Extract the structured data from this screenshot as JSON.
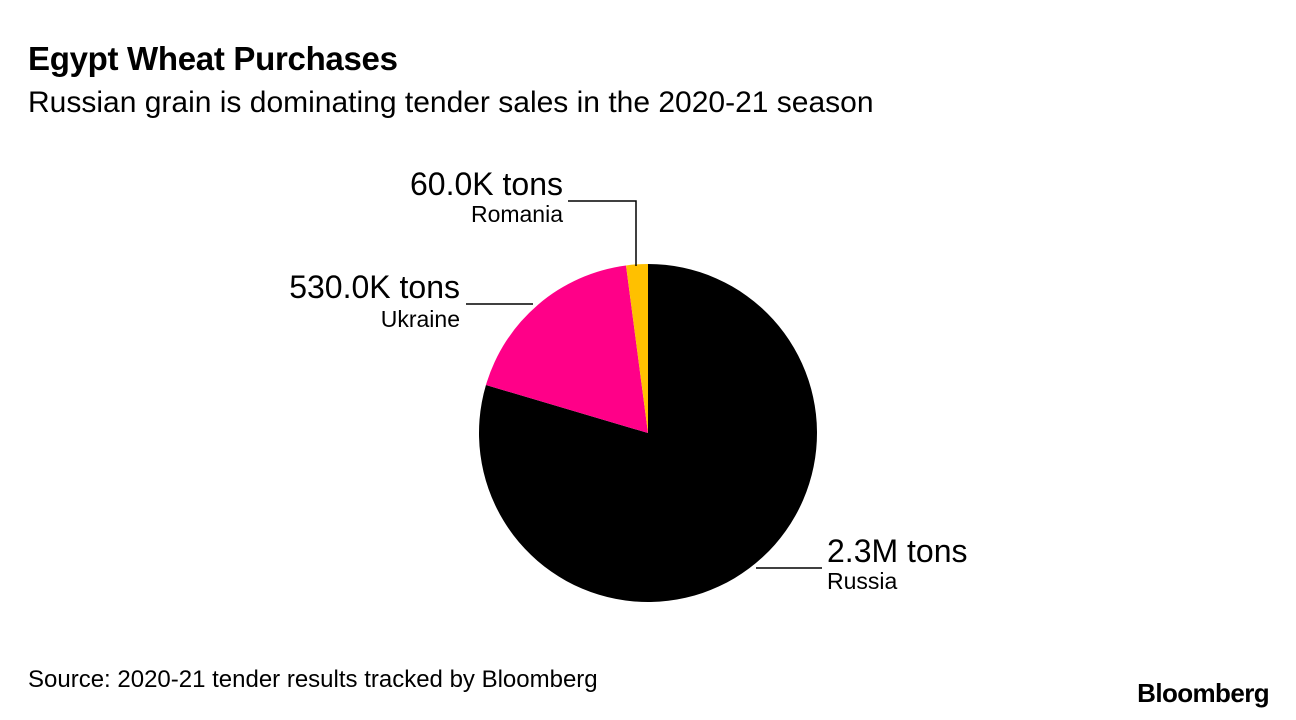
{
  "header": {
    "title": "Egypt Wheat Purchases",
    "subtitle": "Russian grain is dominating tender sales in the 2020-21 season"
  },
  "chart_data": {
    "type": "pie",
    "title": "Egypt Wheat Purchases",
    "subtitle": "Russian grain is dominating tender sales in the 2020-21 season",
    "unit": "tons",
    "slices": [
      {
        "name": "Russia",
        "value": 2300000,
        "label": "2.3M tons",
        "color": "#000000"
      },
      {
        "name": "Ukraine",
        "value": 530000,
        "label": "530.0K tons",
        "color": "#ff0088"
      },
      {
        "name": "Romania",
        "value": 60000,
        "label": "60.0K tons",
        "color": "#ffc000"
      }
    ],
    "start_angle": "12 o'clock",
    "direction": "clockwise",
    "legend": "none"
  },
  "footer": {
    "source": "Source: 2020-21 tender results tracked by Bloomberg",
    "brand": "Bloomberg"
  }
}
